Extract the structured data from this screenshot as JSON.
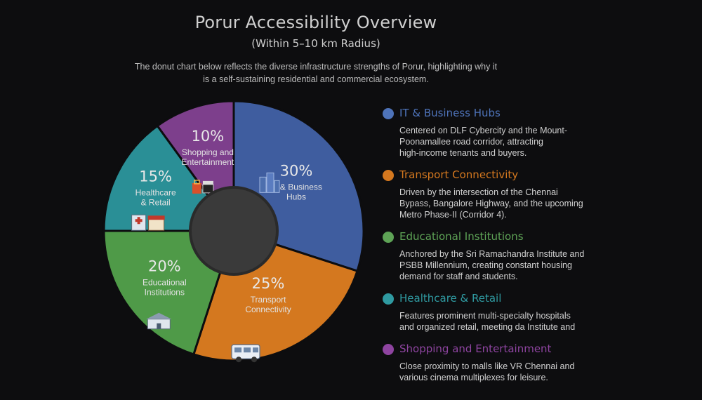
{
  "header": {
    "title": "Porur Accessibility Overview",
    "subtitle": "(Within 5–10 km Radius)",
    "description": "The donut chart below reflects the diverse infrastructure strengths of Porur, highlighting why it is a self-sustaining residential and commercial ecosystem."
  },
  "chart_data": {
    "type": "pie",
    "donut": true,
    "title": "Porur Accessibility Overview",
    "subtitle": "(Within 5–10 km Radius)",
    "slices": [
      {
        "name": "IT & Business Hubs",
        "label_lines": [
          "IT & Business",
          "Hubs"
        ],
        "value": 30,
        "percent_label": "30%",
        "color": "#3f5d9f",
        "icon": "office-buildings-icon"
      },
      {
        "name": "Transport Connectivity",
        "label_lines": [
          "Transport",
          "Connectivity"
        ],
        "value": 25,
        "percent_label": "25%",
        "color": "#d4781f",
        "icon": "van-icon"
      },
      {
        "name": "Educational Institutions",
        "label_lines": [
          "Educational",
          "Institutions"
        ],
        "value": 20,
        "percent_label": "20%",
        "color": "#4f9a48",
        "icon": "school-building-icon"
      },
      {
        "name": "Healthcare & Retail",
        "label_lines": [
          "Healthcare",
          "& Retail"
        ],
        "value": 15,
        "percent_label": "15%",
        "color": "#2a8f96",
        "icon": "hospital-store-icon"
      },
      {
        "name": "Shopping and Entertainment",
        "label_lines": [
          "Shopping and",
          "Entertainment"
        ],
        "value": 10,
        "percent_label": "10%",
        "color": "#7d3f8c",
        "icon": "shopping-clapper-icon"
      }
    ],
    "center_color": "#3a3a3a"
  },
  "legend": {
    "items": [
      {
        "title": "IT & Business Hubs",
        "color": "#4e73b9",
        "text": [
          "Centered on DLF Cybercity and the Mount-",
          "Poonamallee road corridor, attracting",
          "high-income tenants and buyers."
        ]
      },
      {
        "title": "Transport Connectivity",
        "color": "#d4781f",
        "text": [
          "Driven by the intersection of the Chennai",
          "Bypass, Bangalore Highway, and the upcoming",
          "Metro Phase-II (Corridor 4)."
        ]
      },
      {
        "title": "Educational Institutions",
        "color": "#5ea356",
        "text": [
          "Anchored by the Sri Ramachandra Institute and",
          "PSBB Millennium, creating constant housing",
          "demand for staff and students."
        ]
      },
      {
        "title": "Healthcare & Retail",
        "color": "#2f9aa1",
        "text": [
          "Features prominent multi-specialty hospitals",
          "and organized retail, meeting da Institute and"
        ]
      },
      {
        "title": "Shopping and Entertainment",
        "color": "#8e44a0",
        "text": [
          "Close proximity to malls like VR Chennai and",
          "various cinema multiplexes for leisure."
        ]
      }
    ]
  }
}
